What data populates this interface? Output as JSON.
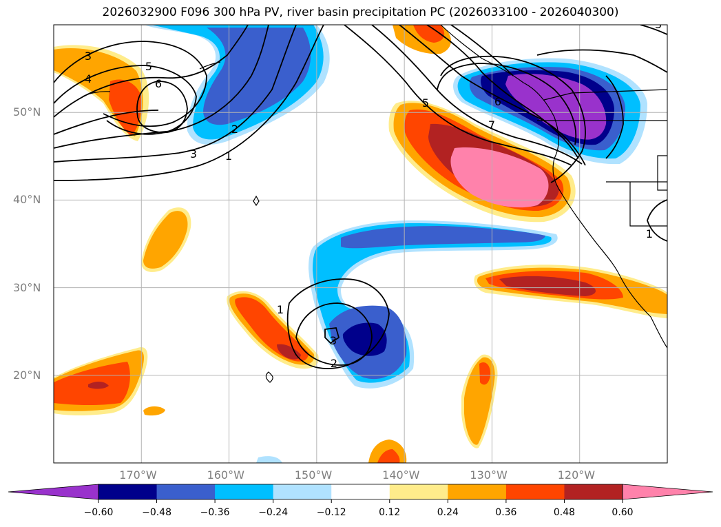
{
  "title": "2026032900 F096 300 hPa PV, river basin precipitation PC (2026033100 - 2026040300)",
  "map": {
    "extent": {
      "lon": [
        -180,
        -110
      ],
      "lat": [
        10,
        60
      ]
    },
    "lat_ticks": [
      {
        "value": 50,
        "label": "50°N"
      },
      {
        "value": 40,
        "label": "40°N"
      },
      {
        "value": 30,
        "label": "30°N"
      },
      {
        "value": 20,
        "label": "20°N"
      }
    ],
    "lon_ticks": [
      {
        "value": -170,
        "label": "170°W"
      },
      {
        "value": -160,
        "label": "160°W"
      },
      {
        "value": -150,
        "label": "150°W"
      },
      {
        "value": -140,
        "label": "140°W"
      },
      {
        "value": -130,
        "label": "130°W"
      },
      {
        "value": -120,
        "label": "120°W"
      }
    ],
    "gridlines": true
  },
  "pv_contour_labels": [
    "3",
    "4",
    "5",
    "6",
    "3",
    "2",
    "1",
    "5",
    "6",
    "7",
    "1",
    "2",
    "3",
    "1",
    "3"
  ],
  "colorbar": {
    "ticks": [
      "−0.60",
      "−0.48",
      "−0.36",
      "−0.24",
      "−0.12",
      "0.12",
      "0.24",
      "0.36",
      "0.48",
      "0.60"
    ],
    "colors": [
      "#9932cc",
      "#00008b",
      "#3a5fcd",
      "#00bfff",
      "#b0e2ff",
      "#ffffff",
      "#ffec8b",
      "#ffa500",
      "#ff4500",
      "#b22222",
      "#ff82ab"
    ],
    "extend": "both"
  }
}
